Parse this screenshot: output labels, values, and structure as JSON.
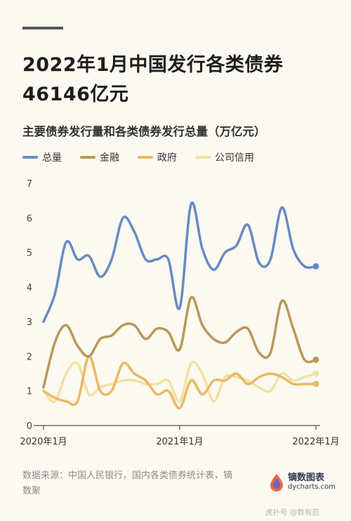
{
  "header": {
    "title_line1": "2022年1月中国发行各类债券",
    "title_line2": "46146亿元",
    "subtitle": "主要债券发行量和各类债券发行总量（万亿元）"
  },
  "source": {
    "text": "数据来源：中国人民银行，国内各类债券统计表，镝数聚"
  },
  "brand": {
    "name": "镝数图表",
    "url": "dycharts.com",
    "footer": "虎扑号 @数有范"
  },
  "colors": {
    "total": "#6a8ac3",
    "finance": "#b8995a",
    "government": "#eab965",
    "corporate": "#f0e2a3",
    "axis": "#555555",
    "background": "#fbf9f0"
  },
  "chart_data": {
    "type": "line",
    "x": [
      "2020-01",
      "2020-02",
      "2020-03",
      "2020-04",
      "2020-05",
      "2020-06",
      "2020-07",
      "2020-08",
      "2020-09",
      "2020-10",
      "2020-11",
      "2020-12",
      "2021-01",
      "2021-02",
      "2021-03",
      "2021-04",
      "2021-05",
      "2021-06",
      "2021-07",
      "2021-08",
      "2021-09",
      "2021-10",
      "2021-11",
      "2021-12",
      "2022-01"
    ],
    "x_ticks": [
      "2020-01",
      "2021-01",
      "2022-01"
    ],
    "x_tick_labels": [
      "2020年1月",
      "2021年1月",
      "2022年1月"
    ],
    "ylim": [
      0,
      7
    ],
    "y_ticks": [
      0,
      1,
      2,
      3,
      4,
      5,
      6,
      7
    ],
    "grid": false,
    "legend_position": "top-left",
    "series": [
      {
        "name": "总量",
        "color_key": "total",
        "end_marker": true,
        "values": [
          3.0,
          3.8,
          5.3,
          4.8,
          4.9,
          4.3,
          4.8,
          6.0,
          5.6,
          4.8,
          4.8,
          4.8,
          3.4,
          6.4,
          5.1,
          4.5,
          5.0,
          5.2,
          5.8,
          4.7,
          4.8,
          6.3,
          5.1,
          4.6,
          4.6
        ]
      },
      {
        "name": "金融",
        "color_key": "finance",
        "end_marker": true,
        "values": [
          1.1,
          2.4,
          2.9,
          2.3,
          2.0,
          2.5,
          2.6,
          2.9,
          2.9,
          2.5,
          2.8,
          2.7,
          2.2,
          3.7,
          2.9,
          2.5,
          2.4,
          2.7,
          2.8,
          2.1,
          2.1,
          3.6,
          2.8,
          1.9,
          1.9
        ]
      },
      {
        "name": "政府",
        "color_key": "government",
        "end_marker": true,
        "values": [
          1.0,
          0.8,
          0.7,
          0.7,
          2.0,
          1.0,
          1.0,
          1.8,
          1.5,
          1.3,
          0.9,
          1.0,
          0.5,
          1.3,
          0.9,
          1.3,
          1.3,
          1.5,
          1.2,
          1.4,
          1.5,
          1.4,
          1.2,
          1.2,
          1.2
        ]
      },
      {
        "name": "公司信用",
        "color_key": "corporate",
        "end_marker": true,
        "values": [
          1.0,
          0.7,
          1.5,
          1.8,
          0.9,
          1.1,
          1.2,
          1.3,
          1.3,
          1.2,
          1.2,
          1.3,
          0.7,
          1.8,
          1.5,
          0.7,
          1.4,
          1.4,
          1.3,
          1.1,
          1.0,
          1.5,
          1.3,
          1.4,
          1.5
        ]
      }
    ]
  }
}
